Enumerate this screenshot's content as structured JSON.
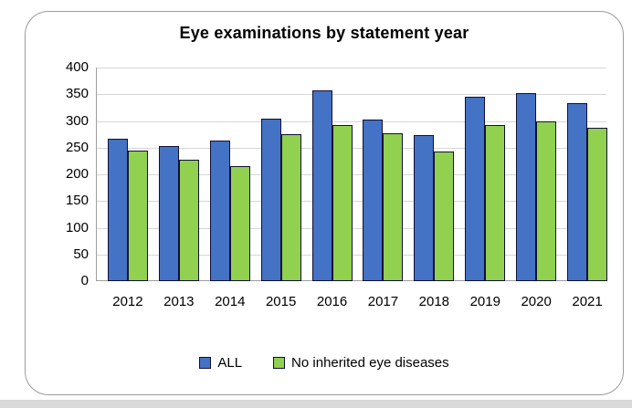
{
  "window": {
    "background": "#ffffff",
    "frame_border_color": "#9b9b9b",
    "bottom_strip_color": "#d9d9d9"
  },
  "chart_data": {
    "type": "bar",
    "title": "Eye examinations by statement year",
    "categories": [
      "2012",
      "2013",
      "2014",
      "2015",
      "2016",
      "2017",
      "2018",
      "2019",
      "2020",
      "2021"
    ],
    "series": [
      {
        "name": "ALL",
        "color": "#4472C4",
        "values": [
          266,
          253,
          263,
          305,
          357,
          302,
          274,
          345,
          352,
          334
        ]
      },
      {
        "name": "No inherited eye diseases",
        "color": "#92D050",
        "values": [
          244,
          228,
          215,
          275,
          292,
          277,
          242,
          292,
          300,
          288
        ]
      }
    ],
    "xlabel": "",
    "ylabel": "",
    "ylim": [
      0,
      400
    ],
    "yticks": [
      0,
      50,
      100,
      150,
      200,
      250,
      300,
      350,
      400
    ],
    "grid": true,
    "legend_position": "bottom",
    "bar_border_color": "#101038",
    "gridline_color": "#d6d6d6",
    "axis_line_color": "#9e9e9e",
    "tick_label_color": "#000000"
  }
}
